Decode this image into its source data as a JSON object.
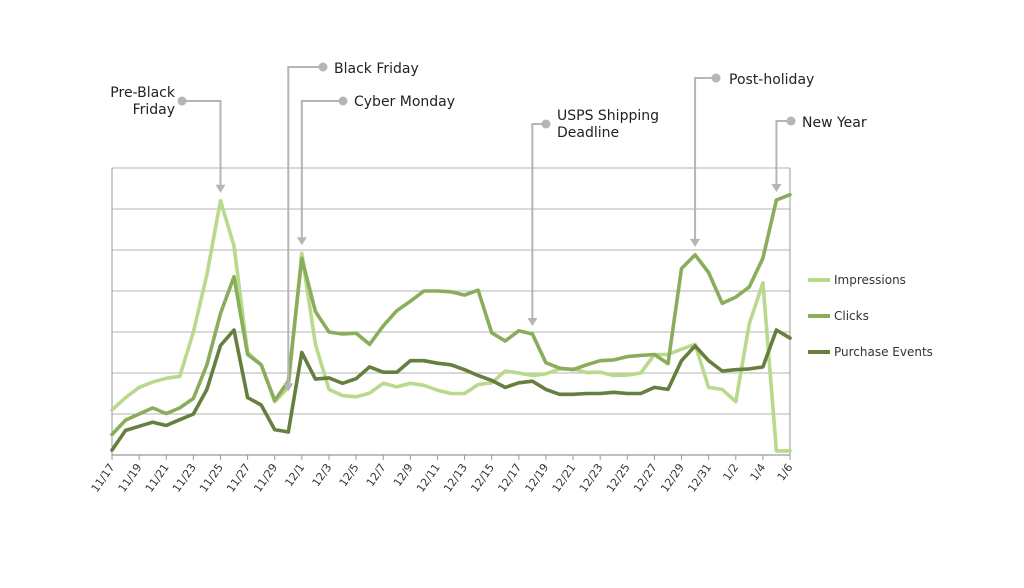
{
  "chart_data": {
    "type": "line",
    "title": "",
    "xlabel": "",
    "ylabel": "",
    "y_axis_labels_shown": false,
    "grid": "horizontal",
    "legend_placement": "right",
    "x_tick_labels": [
      "11/17",
      "11/19",
      "11/21",
      "11/23",
      "11/25",
      "11/27",
      "11/29",
      "12/1",
      "12/3",
      "12/5",
      "12/7",
      "12/9",
      "12/11",
      "12/13",
      "12/15",
      "12/17",
      "12/19",
      "12/21",
      "12/23",
      "12/25",
      "12/27",
      "12/29",
      "12/31",
      "1/2",
      "1/4",
      "1/6"
    ],
    "x_count": 51,
    "ylim": [
      0,
      7
    ],
    "series": [
      {
        "name": "Impressions",
        "color": "#b9d98c",
        "values": [
          1.1,
          1.4,
          1.65,
          1.78,
          1.87,
          1.92,
          3.0,
          4.4,
          6.2,
          5.1,
          2.5,
          2.2,
          1.3,
          1.65,
          4.92,
          2.7,
          1.6,
          1.45,
          1.42,
          1.51,
          1.75,
          1.66,
          1.75,
          1.7,
          1.58,
          1.5,
          1.5,
          1.72,
          1.76,
          2.05,
          2.0,
          1.94,
          1.98,
          2.1,
          2.1,
          2.01,
          2.02,
          1.94,
          1.95,
          2.0,
          2.45,
          2.45,
          2.58,
          2.7,
          1.65,
          1.6,
          1.3,
          3.2,
          4.2,
          0.1,
          0.1
        ]
      },
      {
        "name": "Clicks",
        "color": "#8aad5c",
        "values": [
          0.5,
          0.85,
          1.0,
          1.15,
          1.01,
          1.15,
          1.38,
          2.2,
          3.45,
          4.35,
          2.45,
          2.2,
          1.33,
          1.8,
          4.8,
          3.5,
          3.0,
          2.95,
          2.97,
          2.7,
          3.15,
          3.52,
          3.75,
          4.0,
          4.0,
          3.98,
          3.9,
          4.02,
          2.98,
          2.78,
          3.03,
          2.95,
          2.25,
          2.12,
          2.08,
          2.2,
          2.3,
          2.32,
          2.4,
          2.43,
          2.45,
          2.23,
          4.55,
          4.88,
          4.45,
          3.7,
          3.85,
          4.1,
          4.8,
          6.22,
          6.35
        ]
      },
      {
        "name": "Purchase Events",
        "color": "#667f3f",
        "values": [
          0.12,
          0.6,
          0.7,
          0.8,
          0.72,
          0.86,
          1.0,
          1.6,
          2.67,
          3.05,
          1.4,
          1.22,
          0.62,
          0.56,
          2.5,
          1.85,
          1.88,
          1.75,
          1.86,
          2.15,
          2.02,
          2.02,
          2.3,
          2.3,
          2.24,
          2.2,
          2.08,
          1.94,
          1.82,
          1.65,
          1.76,
          1.8,
          1.6,
          1.48,
          1.48,
          1.5,
          1.5,
          1.53,
          1.5,
          1.5,
          1.65,
          1.6,
          2.3,
          2.66,
          2.3,
          2.05,
          2.08,
          2.1,
          2.15,
          3.05,
          2.85
        ]
      }
    ],
    "annotations": [
      {
        "lines": [
          "Pre-Black",
          "Friday"
        ],
        "align": "right",
        "target_index": 8
      },
      {
        "lines": [
          "Black Friday"
        ],
        "align": "left",
        "target_index": 13
      },
      {
        "lines": [
          "Cyber Monday"
        ],
        "align": "left",
        "target_index": 14
      },
      {
        "lines": [
          "USPS Shipping",
          "Deadline"
        ],
        "align": "left",
        "target_index": 31
      },
      {
        "lines": [
          "Post-holiday"
        ],
        "align": "left",
        "target_index": 43
      },
      {
        "lines": [
          "New Year"
        ],
        "align": "left",
        "target_index": 49
      }
    ],
    "colors": {
      "gridline": "#b3b3b3",
      "axis": "#999999",
      "annotation_line": "#b5b5b5"
    }
  }
}
